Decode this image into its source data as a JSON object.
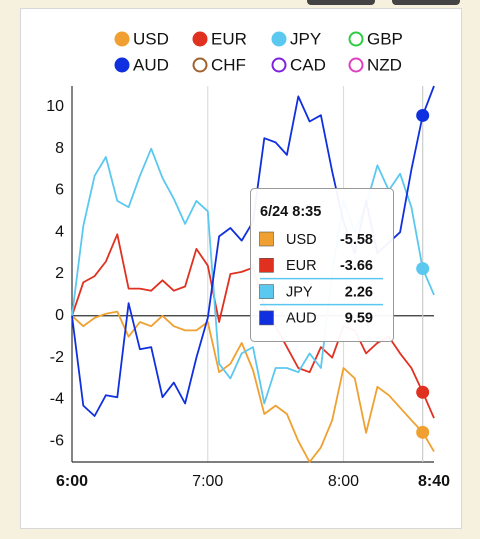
{
  "chart_data": {
    "type": "line",
    "x": [
      "6:00",
      "6:05",
      "6:10",
      "6:15",
      "6:20",
      "6:25",
      "6:30",
      "6:35",
      "6:40",
      "6:45",
      "6:50",
      "6:55",
      "7:00",
      "7:05",
      "7:10",
      "7:15",
      "7:20",
      "7:25",
      "7:30",
      "7:35",
      "7:40",
      "7:45",
      "7:50",
      "7:55",
      "8:00",
      "8:05",
      "8:10",
      "8:15",
      "8:20",
      "8:25",
      "8:30",
      "8:35",
      "8:40"
    ],
    "xlim": [
      "6:00",
      "8:40"
    ],
    "xticks": [
      "6:00",
      "7:00",
      "8:00",
      "8:40"
    ],
    "ylim": [
      -7,
      11
    ],
    "yticks": [
      -6,
      -4,
      -2,
      0,
      2,
      4,
      6,
      8,
      10
    ],
    "grid": true,
    "series": [
      {
        "name": "USD",
        "color": "#f0a030",
        "visible": true,
        "values": [
          0,
          -0.5,
          -0.1,
          0.1,
          0.2,
          -1.0,
          -0.3,
          -0.5,
          0.0,
          -0.5,
          -0.7,
          -0.7,
          -0.3,
          -2.7,
          -2.3,
          -1.3,
          -2.6,
          -4.7,
          -4.3,
          -4.7,
          -6.0,
          -7.0,
          -6.3,
          -5.0,
          -2.5,
          -3.0,
          -5.6,
          -3.4,
          -3.8,
          -4.4,
          -5.0,
          -5.58,
          -6.5
        ]
      },
      {
        "name": "EUR",
        "color": "#e03020",
        "visible": true,
        "values": [
          0,
          1.6,
          1.9,
          2.6,
          3.9,
          1.3,
          1.3,
          1.2,
          1.7,
          1.2,
          1.4,
          3.2,
          2.4,
          -0.3,
          2.0,
          2.1,
          2.3,
          0.5,
          -0.5,
          -1.5,
          -2.5,
          -2.7,
          -1.5,
          -2.0,
          -0.5,
          -0.7,
          -1.8,
          -1.3,
          -1.0,
          -1.8,
          -2.5,
          -3.66,
          -4.9
        ]
      },
      {
        "name": "JPY",
        "color": "#5bc8f0",
        "visible": true,
        "values": [
          0,
          4.3,
          6.7,
          7.6,
          5.5,
          5.2,
          6.7,
          8.0,
          6.6,
          5.6,
          4.4,
          5.5,
          5.0,
          -2.3,
          -3.0,
          -1.8,
          -1.5,
          -4.2,
          -2.5,
          -2.5,
          -2.7,
          -1.8,
          -2.5,
          2.0,
          5.5,
          4.0,
          5.3,
          7.2,
          6.0,
          6.8,
          5.2,
          2.26,
          1.0
        ]
      },
      {
        "name": "GBP",
        "color": "#2ecc40",
        "visible": false
      },
      {
        "name": "AUD",
        "color": "#1030e0",
        "visible": true,
        "values": [
          0,
          -4.3,
          -4.8,
          -3.8,
          -3.9,
          0.6,
          -1.6,
          -1.5,
          -3.9,
          -3.2,
          -4.2,
          -2.0,
          -0.1,
          3.8,
          4.2,
          3.6,
          4.5,
          8.5,
          8.3,
          7.7,
          10.5,
          9.3,
          9.6,
          6.9,
          4.5,
          3.0,
          5.5,
          3.0,
          3.5,
          4.0,
          7.0,
          9.59,
          11.0
        ]
      },
      {
        "name": "CHF",
        "color": "#a0622d",
        "visible": false
      },
      {
        "name": "CAD",
        "color": "#8020e0",
        "visible": false
      },
      {
        "name": "NZD",
        "color": "#e040c0",
        "visible": false
      }
    ],
    "tooltip": {
      "title": "6/24 8:35"
    }
  }
}
